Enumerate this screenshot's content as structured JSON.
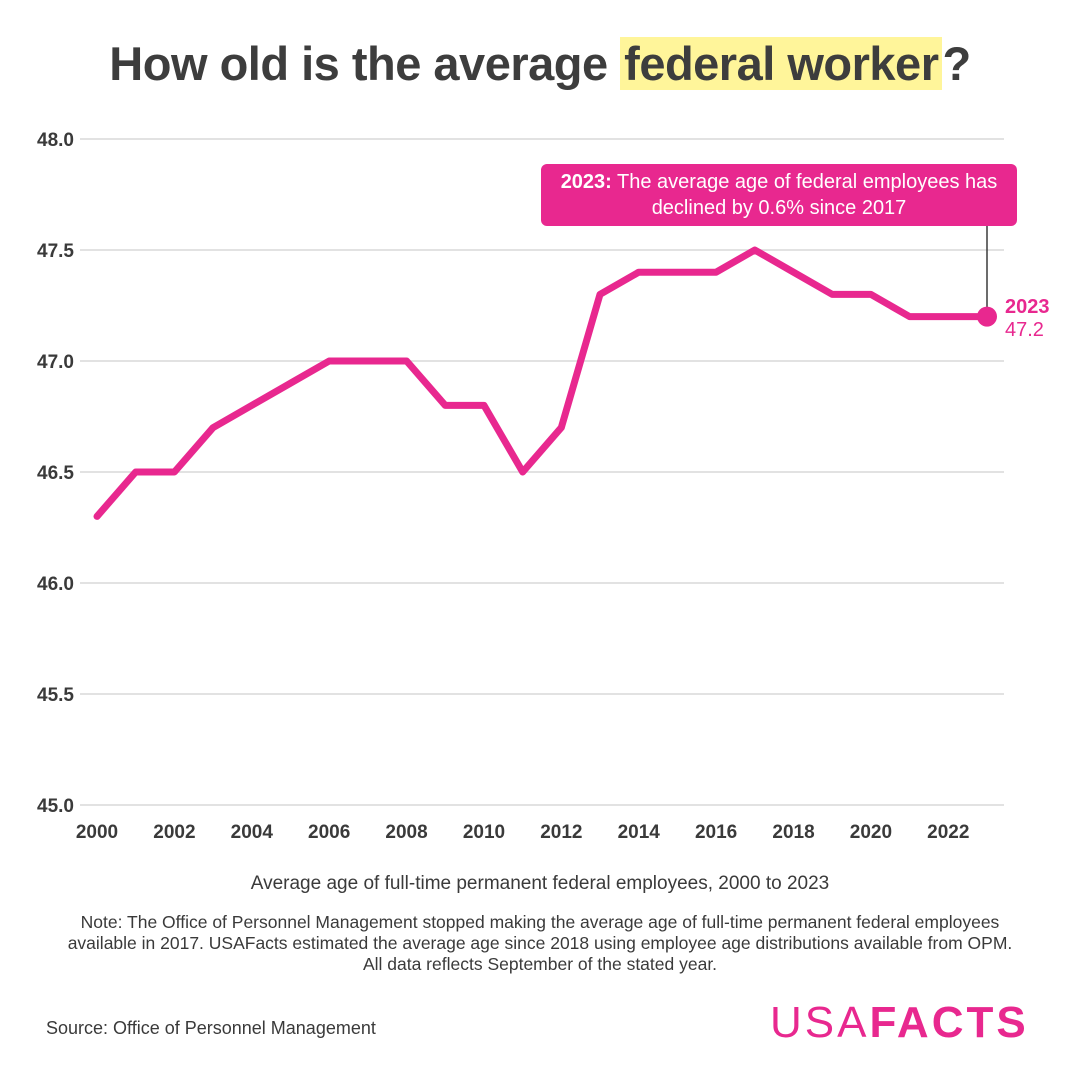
{
  "title": {
    "prefix": "How old is the average ",
    "highlight": "federal worker",
    "suffix": "?",
    "highlight_color": "#fff59a"
  },
  "colors": {
    "line": "#e8288f",
    "text": "#3a3a3a",
    "grid": "#d9d9d9"
  },
  "callout": {
    "bold": "2023:",
    "text": " The average age of federal employees has declined by 0.6% since 2017"
  },
  "end_label": {
    "year": "2023",
    "value": "47.2"
  },
  "subtitle": "Average age of full-time permanent federal employees, 2000 to 2023",
  "note": "Note: The Office of Personnel Management stopped making the average age of full-time permanent federal employees available in 2017. USAFacts estimated the average age since 2018 using employee age distributions available from OPM. All data reflects September of the stated year.",
  "source": "Source: Office of Personnel Management",
  "logo": {
    "part1": "USA",
    "part2": "FACTS"
  },
  "chart_data": {
    "type": "line",
    "title": "How old is the average federal worker?",
    "xlabel": "",
    "ylabel": "",
    "x": [
      2000,
      2001,
      2002,
      2003,
      2004,
      2005,
      2006,
      2007,
      2008,
      2009,
      2010,
      2011,
      2012,
      2013,
      2014,
      2015,
      2016,
      2017,
      2018,
      2019,
      2020,
      2021,
      2022,
      2023
    ],
    "series": [
      {
        "name": "Average age of full-time permanent federal employees",
        "values": [
          46.3,
          46.5,
          46.5,
          46.7,
          46.8,
          46.9,
          47.0,
          47.0,
          47.0,
          46.8,
          46.8,
          46.5,
          46.7,
          47.3,
          47.4,
          47.4,
          47.4,
          47.5,
          47.4,
          47.3,
          47.3,
          47.2,
          47.2,
          47.2
        ]
      }
    ],
    "xlim": [
      2000,
      2023
    ],
    "ylim": [
      45.0,
      48.0
    ],
    "yticks": [
      "45.0",
      "45.5",
      "46.0",
      "46.5",
      "47.0",
      "47.5",
      "48.0"
    ],
    "xticks": [
      "2000",
      "2002",
      "2004",
      "2006",
      "2008",
      "2010",
      "2012",
      "2014",
      "2016",
      "2018",
      "2020",
      "2022"
    ],
    "grid": true,
    "legend": "none",
    "annotations": [
      "2023: The average age of federal employees has declined by 0.6% since 2017",
      "2023 47.2"
    ]
  }
}
